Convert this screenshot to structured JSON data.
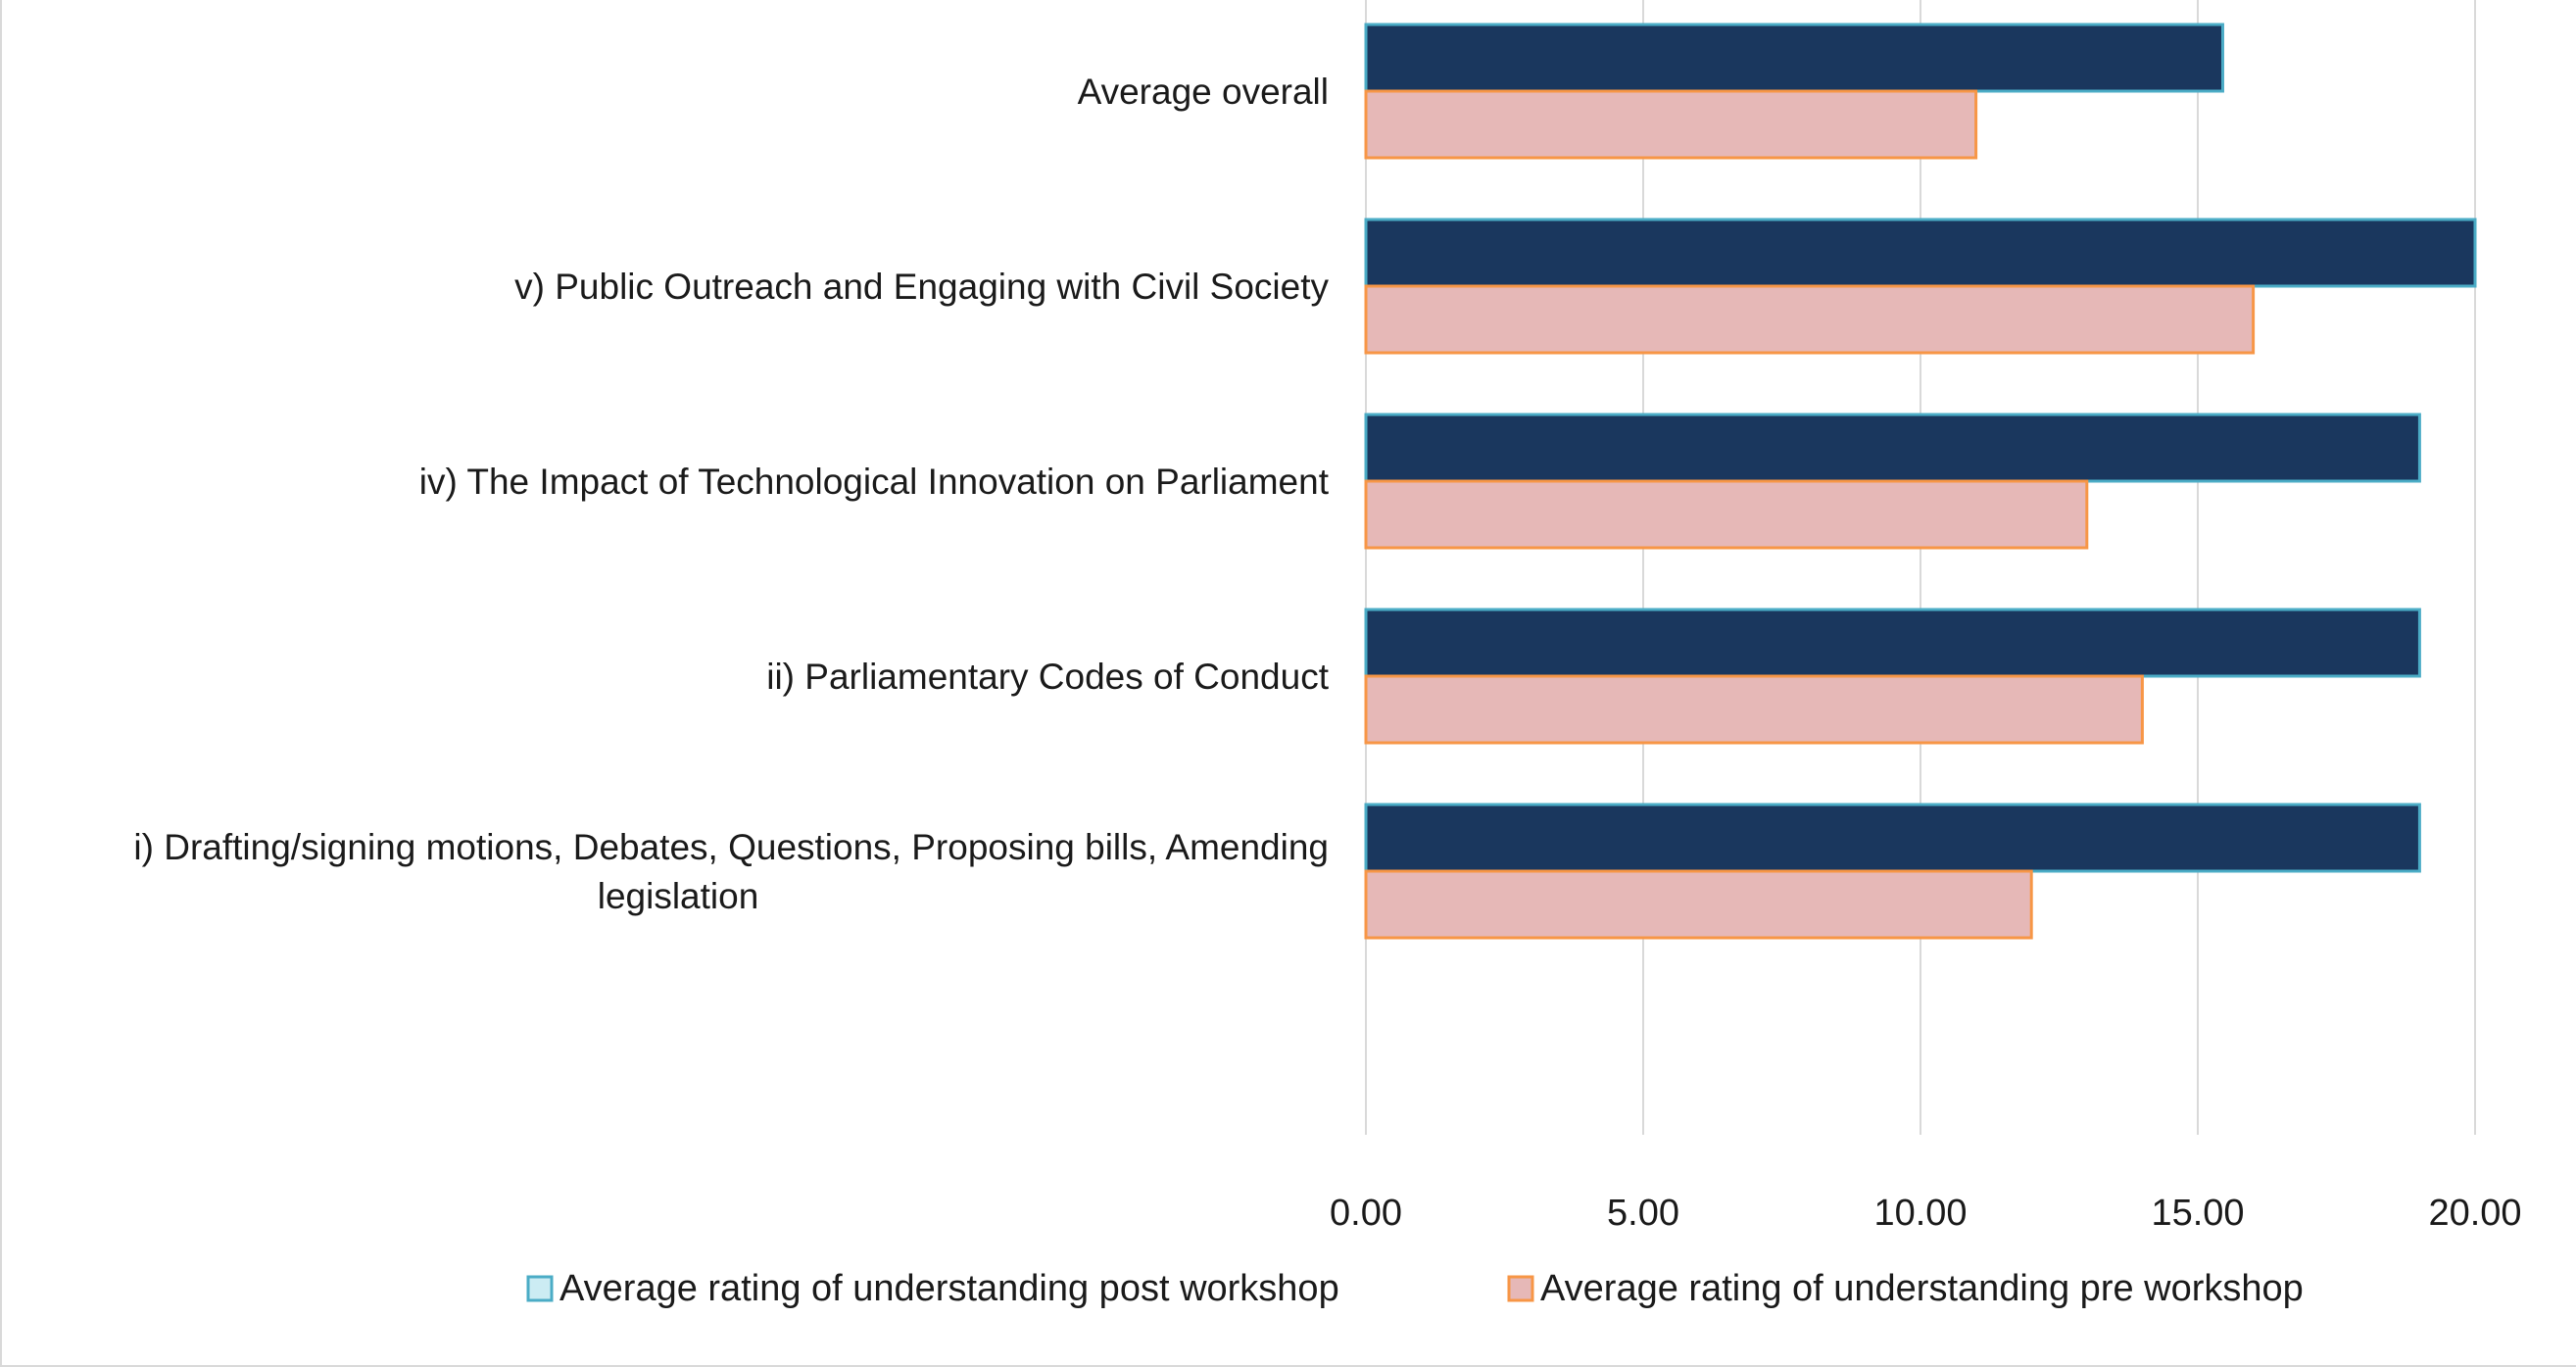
{
  "chart_data": {
    "type": "bar",
    "orientation": "horizontal",
    "categories": [
      "Average overall",
      "v) Public Outreach and Engaging with Civil Society",
      "iv) The Impact of Technological Innovation on Parliament",
      "ii) Parliamentary Codes of Conduct",
      "i) Drafting/signing motions, Debates, Questions, Proposing bills, Amending legislation",
      ""
    ],
    "series": [
      {
        "name": "Average rating of understanding post workshop",
        "values": [
          15.45,
          20.0,
          19.0,
          19.0,
          19.0,
          0
        ],
        "fill": "#1a375e",
        "stroke": "#4bacc6",
        "legend_swatch": "#ccecf3"
      },
      {
        "name": "Average rating of understanding pre workshop",
        "values": [
          11.0,
          16.0,
          13.0,
          14.0,
          12.0,
          0
        ],
        "fill": "#e6b8b7",
        "stroke": "#f79646",
        "legend_swatch": "#e6b8b7"
      }
    ],
    "xlim": [
      0,
      20
    ],
    "x_ticks": [
      "0.00",
      "5.00",
      "10.00",
      "15.00",
      "20.00"
    ],
    "grid": true,
    "legend_position": "bottom",
    "gridline_color": "#d9d9d9"
  }
}
